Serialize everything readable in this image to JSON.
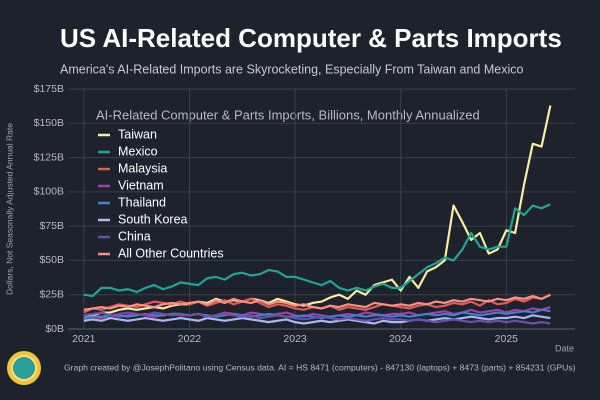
{
  "chart_data": {
    "type": "line",
    "title": "US AI-Related Computer & Parts Imports",
    "subtitle": "America's AI-Related Imports are Skyrocketing, Especially From Taiwan and Mexico",
    "legend_title": "AI-Related Computer & Parts Imports, Billions, Monthly Annualized",
    "y_label": "Dollars, Not Seasonally Adjusted Annual Rate",
    "x_label": "Date",
    "footer": "Graph created by @JosephPolitano using Census data. AI = HS 8471 (computers) - 847130 (laptops) + 8473 (parts) + 854231 (GPUs)",
    "grid": true,
    "legend": "upper left",
    "xlim": [
      2020.85,
      2025.65
    ],
    "xticks": [
      2021,
      2022,
      2023,
      2024,
      2025
    ],
    "ylim": [
      0,
      175
    ],
    "yticks": [
      {
        "value": 0,
        "label": "$0B"
      },
      {
        "value": 25,
        "label": "$25B"
      },
      {
        "value": 50,
        "label": "$50B"
      },
      {
        "value": 75,
        "label": "$75B"
      },
      {
        "value": 100,
        "label": "$100B"
      },
      {
        "value": 125,
        "label": "$125B"
      },
      {
        "value": 150,
        "label": "$150B"
      },
      {
        "value": 175,
        "label": "$175B"
      }
    ],
    "x": [
      2021,
      2021.083,
      2021.167,
      2021.25,
      2021.333,
      2021.417,
      2021.5,
      2021.583,
      2021.667,
      2021.75,
      2021.833,
      2021.917,
      2022,
      2022.083,
      2022.167,
      2022.25,
      2022.333,
      2022.417,
      2022.5,
      2022.583,
      2022.667,
      2022.75,
      2022.833,
      2022.917,
      2023,
      2023.083,
      2023.167,
      2023.25,
      2023.333,
      2023.417,
      2023.5,
      2023.583,
      2023.667,
      2023.75,
      2023.833,
      2023.917,
      2024,
      2024.083,
      2024.167,
      2024.25,
      2024.333,
      2024.417,
      2024.5,
      2024.583,
      2024.667,
      2024.75,
      2024.833,
      2024.917,
      2025,
      2025.083,
      2025.167,
      2025.25,
      2025.333,
      2025.417
    ],
    "series": [
      {
        "name": "Taiwan",
        "color": "#f6eea0",
        "values": [
          8,
          10,
          12,
          12,
          14,
          15,
          14,
          15,
          16,
          15,
          17,
          18,
          18,
          20,
          19,
          22,
          20,
          21,
          20,
          22,
          21,
          19,
          22,
          20,
          18,
          17,
          19,
          20,
          23,
          25,
          22,
          28,
          25,
          32,
          34,
          36,
          28,
          38,
          30,
          42,
          45,
          50,
          90,
          78,
          65,
          70,
          55,
          58,
          72,
          70,
          105,
          135,
          133,
          163
        ]
      },
      {
        "name": "Mexico",
        "color": "#1fa595",
        "values": [
          25,
          24,
          30,
          30,
          28,
          29,
          27,
          30,
          32,
          29,
          31,
          34,
          33,
          32,
          37,
          38,
          36,
          40,
          41,
          39,
          40,
          43,
          42,
          38,
          38,
          36,
          34,
          32,
          35,
          30,
          28,
          30,
          28,
          31,
          33,
          30,
          30,
          35,
          40,
          45,
          48,
          52,
          50,
          58,
          70,
          60,
          58,
          60,
          60,
          88,
          83,
          90,
          88,
          91
        ]
      },
      {
        "name": "Malaysia",
        "color": "#e05a5a",
        "values": [
          12,
          15,
          14,
          16,
          18,
          17,
          16,
          18,
          20,
          19,
          18,
          20,
          18,
          20,
          17,
          19,
          21,
          18,
          20,
          22,
          19,
          16,
          18,
          17,
          15,
          14,
          16,
          15,
          17,
          14,
          16,
          15,
          14,
          16,
          18,
          17,
          16,
          15,
          17,
          18,
          16,
          17,
          19,
          18,
          20,
          17,
          21,
          18,
          19,
          22,
          20,
          23,
          22,
          25
        ]
      },
      {
        "name": "Vietnam",
        "color": "#a040a8",
        "values": [
          8,
          9,
          8,
          10,
          9,
          10,
          11,
          10,
          9,
          10,
          11,
          10,
          10,
          11,
          9,
          10,
          12,
          11,
          10,
          12,
          11,
          10,
          11,
          12,
          10,
          9,
          11,
          10,
          9,
          10,
          11,
          10,
          12,
          11,
          10,
          11,
          11,
          12,
          10,
          11,
          12,
          13,
          11,
          12,
          14,
          12,
          13,
          14,
          12,
          14,
          13,
          15,
          14,
          16
        ]
      },
      {
        "name": "Thailand",
        "color": "#3f80d0",
        "values": [
          8,
          9,
          9,
          10,
          10,
          9,
          10,
          11,
          10,
          10,
          11,
          11,
          10,
          11,
          10,
          9,
          10,
          11,
          10,
          9,
          10,
          11,
          10,
          9,
          9,
          10,
          9,
          8,
          9,
          10,
          9,
          10,
          9,
          10,
          10,
          9,
          10,
          9,
          10,
          11,
          10,
          11,
          10,
          12,
          11,
          10,
          11,
          12,
          11,
          12,
          13,
          12,
          14,
          13
        ]
      },
      {
        "name": "South Korea",
        "color": "#aab8f2",
        "values": [
          6,
          7,
          6,
          8,
          7,
          6,
          7,
          8,
          7,
          6,
          7,
          8,
          7,
          6,
          8,
          7,
          6,
          7,
          8,
          7,
          6,
          5,
          6,
          7,
          5,
          4,
          5,
          6,
          5,
          6,
          7,
          6,
          5,
          4,
          6,
          5,
          5,
          6,
          7,
          6,
          7,
          8,
          7,
          8,
          9,
          8,
          7,
          8,
          8,
          9,
          8,
          10,
          9,
          8
        ]
      },
      {
        "name": "China",
        "color": "#6a50a8",
        "values": [
          10,
          11,
          12,
          10,
          11,
          12,
          11,
          10,
          12,
          11,
          10,
          11,
          10,
          11,
          9,
          10,
          11,
          10,
          9,
          10,
          8,
          9,
          10,
          9,
          8,
          7,
          8,
          9,
          8,
          7,
          8,
          7,
          6,
          7,
          8,
          7,
          7,
          6,
          7,
          6,
          5,
          6,
          7,
          6,
          5,
          6,
          5,
          6,
          5,
          6,
          5,
          4,
          5,
          4
        ]
      },
      {
        "name": "All Other Countries",
        "color": "#f79282",
        "values": [
          14,
          15,
          16,
          15,
          17,
          16,
          18,
          17,
          16,
          18,
          19,
          18,
          19,
          20,
          18,
          21,
          19,
          22,
          20,
          19,
          21,
          18,
          20,
          19,
          17,
          18,
          16,
          15,
          17,
          16,
          18,
          17,
          16,
          19,
          18,
          17,
          18,
          17,
          19,
          18,
          20,
          19,
          21,
          20,
          22,
          21,
          20,
          22,
          21,
          23,
          22,
          24,
          22,
          25
        ]
      }
    ]
  }
}
